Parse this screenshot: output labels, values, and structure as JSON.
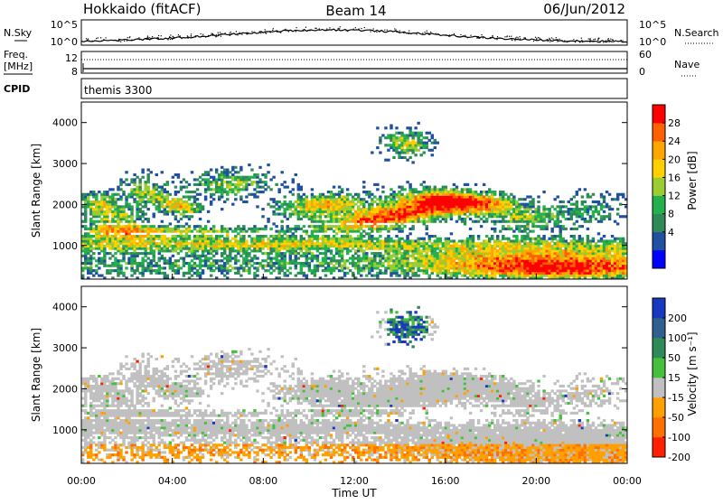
{
  "header": {
    "station": "Hokkaido (fitACF)",
    "beam": "Beam 14",
    "date": "06/Jun/2012"
  },
  "left_labels": {
    "nsky": "N.Sky",
    "freq": "Freq.",
    "freq_unit": "[MHz]",
    "cpid": "CPID"
  },
  "right_labels": {
    "nsearch": "N.Search",
    "nave": "Nave"
  },
  "cpid_text": "themis 3300",
  "colors": {
    "power": [
      "#0000ff",
      "#2050a0",
      "#2e8b57",
      "#22b14c",
      "#9acd32",
      "#ffd000",
      "#ffa500",
      "#ff6000",
      "#ff0000"
    ],
    "velocity": [
      "#1838c0",
      "#306090",
      "#2e8b57",
      "#44c03c",
      "#c0c0c0",
      "#ffa000",
      "#ff7000",
      "#ff2000"
    ]
  },
  "chart_data": [
    {
      "type": "line",
      "name": "nsky-panel",
      "ylabel_left": "N.Sky",
      "ylabel_right": "N.Search",
      "yticks_left": [
        "10^5",
        "10^0"
      ],
      "yticks_right": [
        "10^5",
        "10^0"
      ],
      "xlim": [
        0,
        24
      ]
    },
    {
      "type": "line",
      "name": "freq-panel",
      "ylabel_left": "[MHz]",
      "ylabel_right": "Nave",
      "yticks_left": [
        "12",
        "8"
      ],
      "yticks_right": [
        "60",
        "0"
      ],
      "xlim": [
        0,
        24
      ]
    },
    {
      "type": "heatmap",
      "name": "power-panel",
      "ylabel": "Slant Range [km]",
      "yticks": [
        "1000",
        "2000",
        "3000",
        "4000"
      ],
      "ylim": [
        180,
        4500
      ],
      "xlim": [
        0,
        24
      ],
      "colorbar_label": "Power [dB]",
      "colorbar_ticks": [
        "28",
        "24",
        "20",
        "16",
        "12",
        "8",
        "4"
      ]
    },
    {
      "type": "heatmap",
      "name": "velocity-panel",
      "ylabel": "Slant Range [km]",
      "yticks": [
        "1000",
        "2000",
        "3000",
        "4000"
      ],
      "ylim": [
        180,
        4500
      ],
      "xlim": [
        0,
        24
      ],
      "colorbar_label": "Velocity [m s⁻¹]",
      "colorbar_ticks": [
        "200",
        "100",
        "50",
        "15",
        "-15",
        "-50",
        "-100",
        "-200"
      ]
    }
  ],
  "xaxis": {
    "ticks": [
      "00:00",
      "04:00",
      "08:00",
      "12:00",
      "16:00",
      "20:00",
      "00:00"
    ],
    "label": "Time UT"
  }
}
